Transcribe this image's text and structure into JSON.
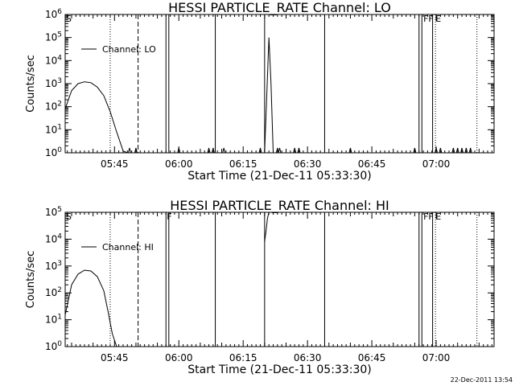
{
  "chart_data": [
    {
      "type": "line",
      "title": "HESSI PARTICLE_RATE Channel: LO",
      "xlabel": "Start Time (21-Dec-11 05:33:30)",
      "ylabel": "Counts/sec",
      "yscale": "log",
      "ylim": [
        1,
        1000000
      ],
      "xlim": [
        "05:33:30",
        "07:13:30"
      ],
      "x_ticks": [
        "05:45",
        "06:00",
        "06:15",
        "06:30",
        "06:45",
        "07:00"
      ],
      "y_ticks": [
        "10^0",
        "10^1",
        "10^2",
        "10^3",
        "10^4",
        "10^5",
        "10^6"
      ],
      "legend": {
        "label": "Channel: LO",
        "placement": "top-left"
      },
      "series": [
        {
          "name": "Channel: LO",
          "segments": [
            {
              "x": [
                "05:33:30",
                "05:35:00",
                "05:36:30",
                "05:38:00",
                "05:39:30",
                "05:41:00",
                "05:42:30",
                "05:44:00",
                "05:45:30",
                "05:47:00",
                "05:48:00"
              ],
              "y": [
                80,
                500,
                1000,
                1200,
                1100,
                700,
                300,
                60,
                8,
                1.2,
                1
              ]
            },
            {
              "x": [
                "06:20:00",
                "06:20:30",
                "06:21:00",
                "06:21:30",
                "06:22:00"
              ],
              "y": [
                1,
                300,
                100000,
                1000,
                1
              ]
            }
          ],
          "small_bumps": [
            "05:48:30",
            "05:50:00",
            "06:00:00",
            "06:07:00",
            "06:08:00",
            "06:10:30",
            "06:19:00",
            "06:23:00",
            "06:23:30",
            "06:27:00",
            "06:28:00",
            "06:40:00",
            "06:55:00",
            "07:00:00",
            "07:01:00",
            "07:04:00",
            "07:05:00",
            "07:06:00",
            "07:07:00",
            "07:08:00"
          ]
        }
      ],
      "vertical_lines": {
        "solid": [
          "05:57:00",
          "05:57:40",
          "06:08:30",
          "06:20:00",
          "06:34:00",
          "06:56:00",
          "06:56:40",
          "06:59:10"
        ],
        "dashed": [
          "05:50:30"
        ],
        "dotted": [
          "05:44:00",
          "06:59:50",
          "07:09:30"
        ]
      },
      "flags": [
        {
          "label": "S",
          "x": "05:33:30"
        },
        {
          "label": "F",
          "x": "06:56:50"
        },
        {
          "label": "F",
          "x": "06:58:00"
        },
        {
          "label": "E",
          "x": "06:59:40"
        }
      ]
    },
    {
      "type": "line",
      "title": "HESSI PARTICLE_RATE Channel: HI",
      "xlabel": "Start Time (21-Dec-11 05:33:30)",
      "ylabel": "Counts/sec",
      "yscale": "log",
      "ylim": [
        1,
        100000
      ],
      "xlim": [
        "05:33:30",
        "07:13:30"
      ],
      "x_ticks": [
        "05:45",
        "06:00",
        "06:15",
        "06:30",
        "06:45",
        "07:00"
      ],
      "y_ticks": [
        "10^0",
        "10^1",
        "10^2",
        "10^3",
        "10^4",
        "10^5"
      ],
      "legend": {
        "label": "Channel: HI",
        "placement": "top-left"
      },
      "series": [
        {
          "name": "Channel: HI",
          "segments": [
            {
              "x": [
                "05:33:30",
                "05:35:00",
                "05:36:30",
                "05:38:00",
                "05:39:30",
                "05:41:00",
                "05:42:30",
                "05:43:30",
                "05:44:30",
                "05:45:30"
              ],
              "y": [
                15,
                200,
                500,
                700,
                650,
                400,
                120,
                20,
                3,
                1
              ]
            },
            {
              "x": [
                "06:20:00",
                "06:20:20",
                "06:20:40",
                "06:21:00",
                "06:21:30",
                "06:22:00"
              ],
              "y": [
                8000,
                20000,
                60000,
                100000,
                100000,
                100000
              ]
            }
          ]
        }
      ],
      "vertical_lines": {
        "solid": [
          "05:57:00",
          "05:57:40",
          "06:08:30",
          "06:20:00",
          "06:34:00",
          "06:56:00",
          "06:56:40",
          "06:59:10"
        ],
        "dashed": [
          "05:50:30"
        ],
        "dotted": [
          "05:44:00",
          "06:59:50",
          "07:09:30"
        ]
      },
      "flags": [
        {
          "label": "S",
          "x": "05:33:30"
        },
        {
          "label": "F",
          "x": "05:57:00"
        },
        {
          "label": "F",
          "x": "06:56:50"
        },
        {
          "label": "F",
          "x": "06:58:00"
        },
        {
          "label": "E",
          "x": "06:59:40"
        }
      ]
    }
  ],
  "footer": {
    "timestamp": "22-Dec-2011 13:54"
  }
}
